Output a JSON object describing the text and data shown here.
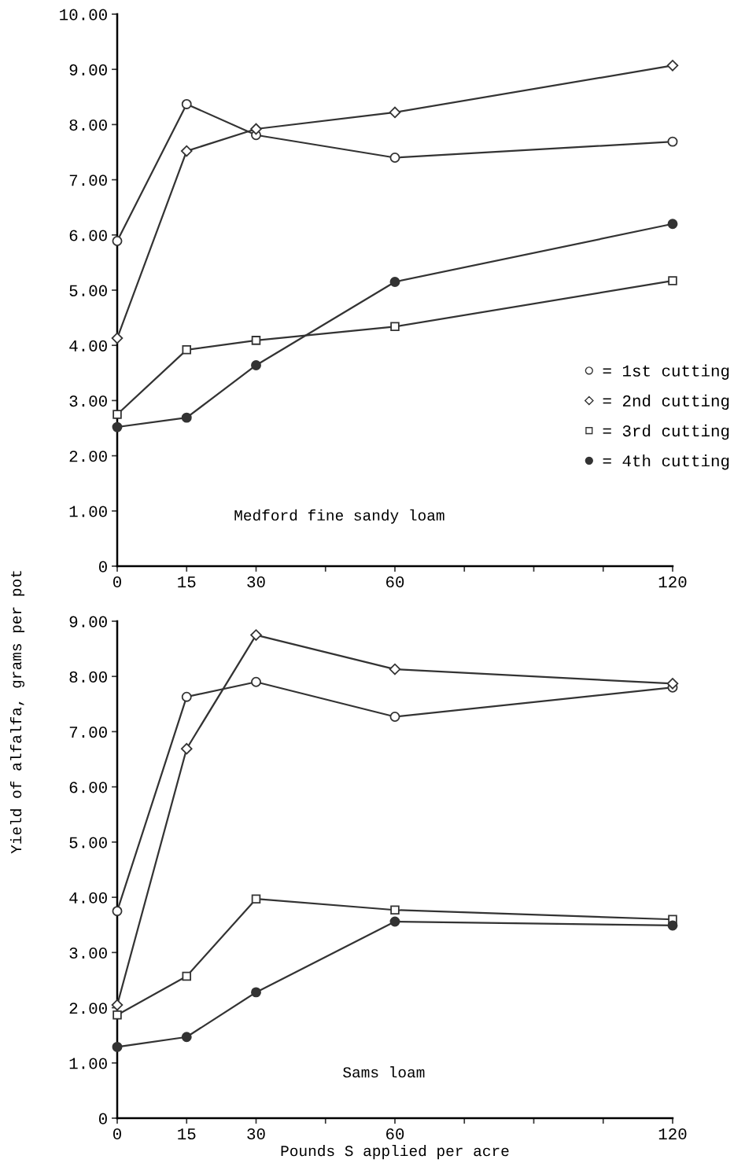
{
  "chart_data": [
    {
      "type": "line",
      "ylabel": "Yield of alfalfa, grams per pot",
      "annotations": [
        "Medford fine sandy loam"
      ],
      "x": [
        0,
        15,
        30,
        60,
        120
      ],
      "xlim": [
        0,
        120
      ],
      "xticks": [
        0,
        15,
        30,
        {
          "value": 45,
          "label": null
        },
        60,
        {
          "value": 75,
          "label": null
        },
        {
          "value": 90,
          "label": null
        },
        {
          "value": 105,
          "label": null
        },
        120
      ],
      "ylim": [
        0,
        10
      ],
      "yticks": [
        0,
        {
          "value": 1,
          "label": "1.00"
        },
        {
          "value": 2,
          "label": "2.00"
        },
        {
          "value": 3,
          "label": "3.00"
        },
        {
          "value": 4,
          "label": "4.00"
        },
        {
          "value": 5,
          "label": "5.00"
        },
        {
          "value": 6,
          "label": "6.00"
        },
        {
          "value": 7,
          "label": "7.00"
        },
        {
          "value": 8,
          "label": "8.00"
        },
        {
          "value": 9,
          "label": "9.00"
        },
        {
          "value": 10,
          "label": "10.00"
        }
      ],
      "grid": false,
      "legend": "right",
      "line_style": "solid",
      "series": [
        {
          "name": "= 1st cutting",
          "color": "#333333",
          "marker": "circle",
          "values": [
            5.89,
            8.37,
            7.81,
            7.4,
            7.69
          ]
        },
        {
          "name": "= 2nd cutting",
          "color": "#333333",
          "marker": "diamond",
          "values": [
            4.13,
            7.52,
            7.92,
            8.22,
            9.07
          ]
        },
        {
          "name": "= 3rd cutting",
          "color": "#333333",
          "marker": "square",
          "values": [
            2.75,
            3.92,
            4.09,
            4.34,
            5.17
          ]
        },
        {
          "name": "= 4th cutting",
          "color": "#333333",
          "marker": "circle",
          "values": [
            2.52,
            2.69,
            3.64,
            5.15,
            6.2
          ]
        }
      ]
    },
    {
      "type": "line",
      "xlabel": "Pounds S applied per acre",
      "annotations": [
        "Sams loam"
      ],
      "x": [
        0,
        15,
        30,
        60,
        120
      ],
      "xlim": [
        0,
        120
      ],
      "xticks": [
        0,
        15,
        30,
        {
          "value": 45,
          "label": null
        },
        60,
        {
          "value": 75,
          "label": null
        },
        {
          "value": 90,
          "label": null
        },
        {
          "value": 105,
          "label": null
        },
        120
      ],
      "ylim": [
        0,
        9
      ],
      "yticks": [
        0,
        {
          "value": 1,
          "label": "1.00"
        },
        {
          "value": 2,
          "label": "2.00"
        },
        {
          "value": 3,
          "label": "3.00"
        },
        {
          "value": 4,
          "label": "4.00"
        },
        {
          "value": 5,
          "label": "5.00"
        },
        {
          "value": 6,
          "label": "6.00"
        },
        {
          "value": 7,
          "label": "7.00"
        },
        {
          "value": 8,
          "label": "8.00"
        },
        {
          "value": 9,
          "label": "9.00"
        }
      ],
      "grid": false,
      "line_style": "solid",
      "series": [
        {
          "color": "#333333",
          "marker": "circle",
          "values": [
            3.75,
            7.63,
            7.9,
            7.27,
            7.8
          ]
        },
        {
          "color": "#333333",
          "marker": "diamond",
          "values": [
            2.05,
            6.69,
            8.75,
            8.13,
            7.87
          ]
        },
        {
          "color": "#333333",
          "marker": "square",
          "values": [
            1.87,
            2.57,
            3.97,
            3.77,
            3.6
          ]
        },
        {
          "color": "#333333",
          "marker": "circle",
          "values": [
            1.29,
            1.47,
            2.28,
            3.56,
            3.49
          ]
        }
      ]
    }
  ]
}
